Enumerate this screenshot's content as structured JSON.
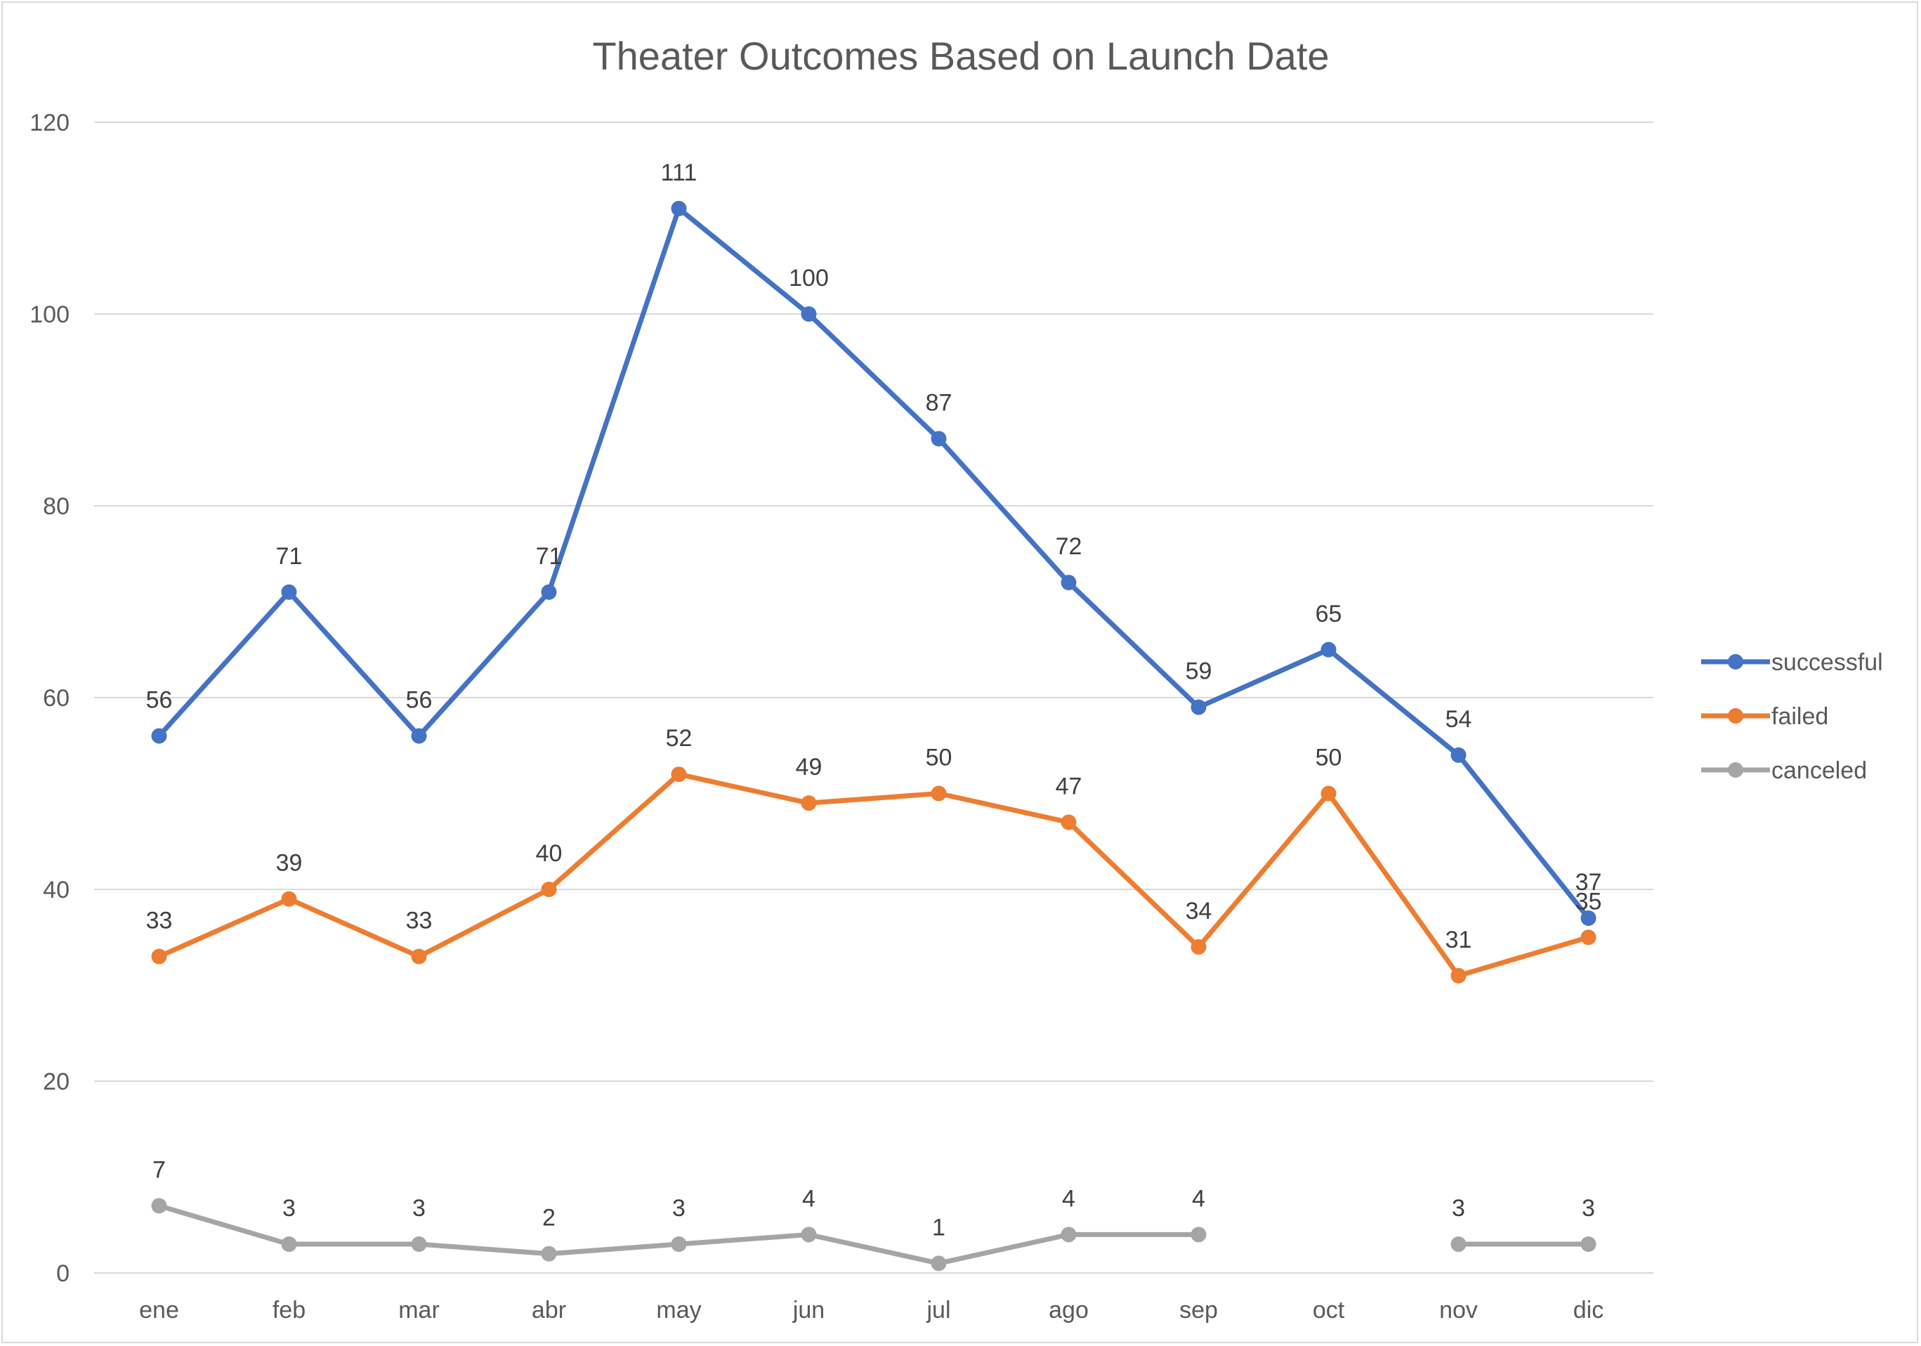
{
  "chart_data": {
    "type": "line",
    "title": "Theater Outcomes Based on Launch Date",
    "xlabel": "",
    "ylabel": "",
    "categories": [
      "ene",
      "feb",
      "mar",
      "abr",
      "may",
      "jun",
      "jul",
      "ago",
      "sep",
      "oct",
      "nov",
      "dic"
    ],
    "ylim": [
      0,
      120
    ],
    "yticks": [
      0,
      20,
      40,
      60,
      80,
      100,
      120
    ],
    "grid": true,
    "legend_position": "right",
    "series": [
      {
        "name": "successful",
        "color": "#4472c4",
        "values": [
          56,
          71,
          56,
          71,
          111,
          100,
          87,
          72,
          59,
          65,
          54,
          37
        ]
      },
      {
        "name": "failed",
        "color": "#ed7d31",
        "values": [
          33,
          39,
          33,
          40,
          52,
          49,
          50,
          47,
          34,
          50,
          31,
          35
        ]
      },
      {
        "name": "canceled",
        "color": "#a5a5a5",
        "values": [
          7,
          3,
          3,
          2,
          3,
          4,
          1,
          4,
          4,
          null,
          3,
          3
        ]
      }
    ]
  }
}
